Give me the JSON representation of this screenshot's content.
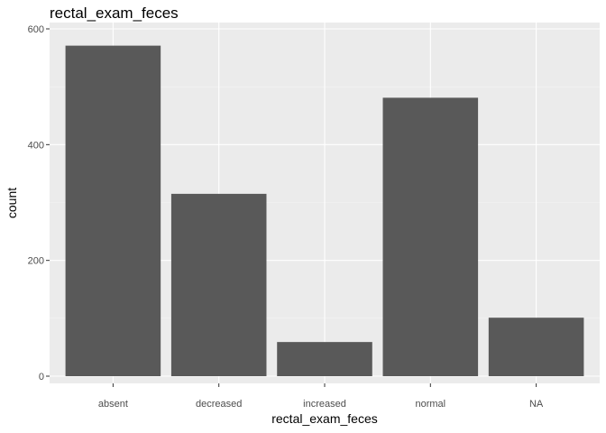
{
  "chart_data": {
    "type": "bar",
    "title": "rectal_exam_feces",
    "xlabel": "rectal_exam_feces",
    "ylabel": "count",
    "categories": [
      "absent",
      "decreased",
      "increased",
      "normal",
      "NA"
    ],
    "values": [
      571,
      315,
      59,
      481,
      101
    ],
    "ylim": [
      0,
      600
    ],
    "yticks": [
      0,
      200,
      400,
      600
    ],
    "grid": true,
    "bar_color": "#595959",
    "panel_color": "#ebebeb"
  }
}
